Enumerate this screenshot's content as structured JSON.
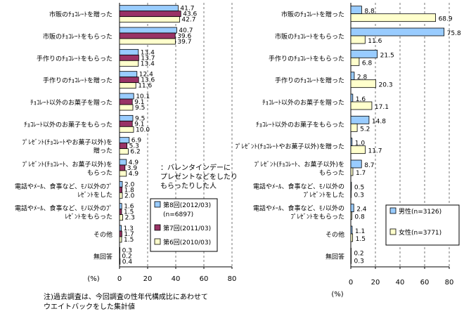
{
  "chart_data": [
    {
      "type": "bar",
      "orientation": "horizontal",
      "categories": [
        "市販のﾁｮｺﾚｰﾄを贈った",
        "市販のﾁｮｺﾚｰﾄをもらった",
        "手作りのﾁｮｺﾚｰﾄをもらった",
        "手作りのﾁｮｺﾚｰﾄを贈った",
        "ﾁｮｺﾚｰﾄ以外のお菓子を贈った",
        "ﾁｮｺﾚｰﾄ以外のお菓子をもらった",
        [
          "ﾌﾟﾚｾﾞﾝﾄ(ﾁｮｺﾚｰﾄやお菓子以外)を",
          "贈った"
        ],
        [
          "ﾌﾟﾚｾﾞﾝﾄ(ﾁｮｺﾚｰﾄ、お菓子以外)を",
          "もらった"
        ],
        [
          "電話やﾒｰﾙ、食事など、ﾓﾉ以外のﾌﾟ",
          "ﾚｾﾞﾝﾄをした"
        ],
        [
          "電話やﾒｰﾙ、食事など、ﾓﾉ以外のﾌﾟ",
          "ﾚｾﾞﾝﾄをもらった"
        ],
        "その他",
        "無回答"
      ],
      "series": [
        {
          "name": "第8回(2012/03)",
          "sub": "(n=6897)",
          "color": "#99ccff",
          "values": [
            41.7,
            40.7,
            13.4,
            12.4,
            10.1,
            9.5,
            6.9,
            4.9,
            2.0,
            1.6,
            1.3,
            0.3
          ]
        },
        {
          "name": "第7回(2011/03)",
          "color": "#993366",
          "values": [
            43.6,
            39.6,
            13.7,
            13.6,
            9.1,
            9.1,
            5.3,
            3.9,
            1.8,
            1.5,
            1.7,
            0.2
          ]
        },
        {
          "name": "第6回(2010/03)",
          "color": "#ffffcc",
          "values": [
            42.7,
            39.7,
            13.4,
            11.6,
            9.5,
            10.0,
            6.2,
            4.9,
            2.0,
            2.3,
            1.5,
            0.4
          ]
        }
      ],
      "legend_title": [
        "：バレンタインデーに",
        "プレゼントなどをしたり",
        "もらったりした人"
      ],
      "xlabel": "(%)",
      "xlim": [
        0,
        80
      ],
      "xticks": [
        0,
        20,
        40,
        60,
        80
      ],
      "grid": "vertical dashed",
      "legend_position": "bottom-right"
    },
    {
      "type": "bar",
      "orientation": "horizontal",
      "categories": [
        "市販のﾁｮｺﾚｰﾄを贈った",
        "市販のﾁｮｺﾚｰﾄをもらった",
        "手作りのﾁｮｺﾚｰﾄをもらった",
        "手作りのﾁｮｺﾚｰﾄを贈った",
        "ﾁｮｺﾚｰﾄ以外のお菓子を贈った",
        "ﾁｮｺﾚｰﾄ以外のお菓子をもらった",
        "ﾌﾟﾚｾﾞﾝﾄ(ﾁｮｺﾚｰﾄやお菓子以外)を贈った",
        [
          "ﾌﾟﾚｾﾞﾝﾄ(ﾁｮｺﾚｰﾄ、お菓子以外)を",
          "もらった"
        ],
        [
          "電話やﾒｰﾙ、食事など、ﾓﾉ以外の",
          "ﾌﾟﾚｾﾞﾝﾄをした"
        ],
        [
          "電話やﾒｰﾙ、食事など、ﾓﾉ以外の",
          "ﾌﾟﾚｾﾞﾝﾄをもらった"
        ],
        "その他",
        "無回答"
      ],
      "series": [
        {
          "name": "男性(n=3126)",
          "color": "#99ccff",
          "values": [
            8.8,
            75.8,
            21.5,
            2.8,
            1.6,
            14.8,
            1.0,
            8.7,
            0.5,
            2.4,
            1.1,
            0.2
          ]
        },
        {
          "name": "女性(n=3771)",
          "color": "#ffffcc",
          "values": [
            68.9,
            11.6,
            6.8,
            20.3,
            17.1,
            5.2,
            11.7,
            1.7,
            0.3,
            0.8,
            1.5,
            0.3
          ]
        }
      ],
      "xlabel": "(%)",
      "xlim": [
        0,
        80
      ],
      "xticks": [
        0,
        20,
        40,
        60,
        80
      ],
      "grid": "vertical dashed",
      "legend_position": "bottom-right"
    }
  ],
  "footnote": [
    "注)過去調査は、今回調査の性年代構成比にあわせて",
    "ウエイトバックをした集計値"
  ]
}
